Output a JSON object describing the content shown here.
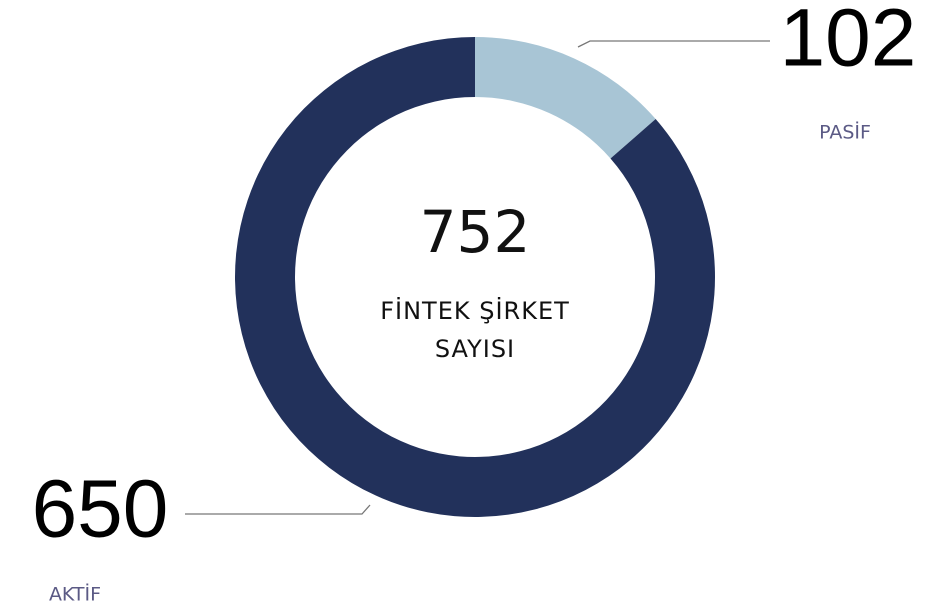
{
  "chart_data": {
    "type": "pie",
    "donut": true,
    "categories": [
      "PASİF",
      "AKTİF"
    ],
    "values": [
      102,
      650
    ],
    "colors": [
      "#a8c5d5",
      "#22315b"
    ],
    "center_value": 752,
    "center_label": "FİNTEK ŞİRKET SAYISI"
  }
}
